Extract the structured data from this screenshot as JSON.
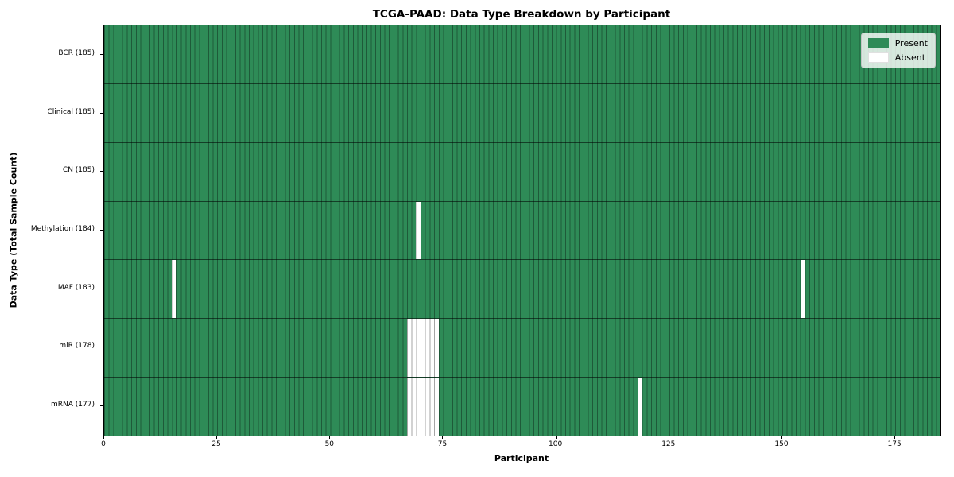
{
  "chart_data": {
    "type": "heatmap",
    "title": "TCGA-PAAD: Data Type Breakdown by Participant",
    "xlabel": "Participant",
    "ylabel": "Data Type (Total Sample Count)",
    "x_ticks": [
      0,
      25,
      50,
      75,
      100,
      125,
      150,
      175
    ],
    "n_participants": 185,
    "xlim": [
      0,
      185
    ],
    "grid": "cell-borders",
    "legend": {
      "position": "upper-right",
      "present_label": "Present",
      "absent_label": "Absent"
    },
    "colors": {
      "present": "#2e8b57",
      "absent": "#ffffff",
      "cell_edge": "rgba(0,0,0,0.35)",
      "row_divider": "rgba(0,0,0,0.55)"
    },
    "rows": [
      {
        "data_type": "BCR",
        "label": "BCR (185)",
        "present_count": 185,
        "absent_participants": []
      },
      {
        "data_type": "Clinical",
        "label": "Clinical (185)",
        "present_count": 185,
        "absent_participants": []
      },
      {
        "data_type": "CN",
        "label": "CN (185)",
        "present_count": 185,
        "absent_participants": []
      },
      {
        "data_type": "Methylation",
        "label": "Methylation (184)",
        "present_count": 184,
        "absent_participants": [
          69
        ]
      },
      {
        "data_type": "MAF",
        "label": "MAF (183)",
        "present_count": 183,
        "absent_participants": [
          15,
          154
        ]
      },
      {
        "data_type": "miR",
        "label": "miR (178)",
        "present_count": 178,
        "absent_participants": [
          67,
          68,
          69,
          70,
          71,
          72,
          73
        ]
      },
      {
        "data_type": "mRNA",
        "label": "mRNA (177)",
        "present_count": 177,
        "absent_participants": [
          67,
          68,
          69,
          70,
          71,
          72,
          73,
          118
        ]
      }
    ]
  }
}
